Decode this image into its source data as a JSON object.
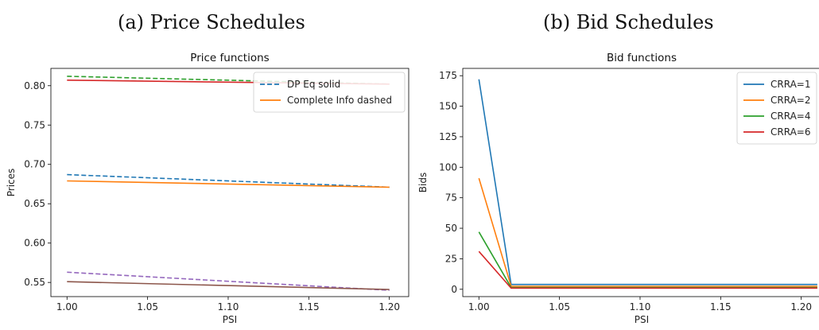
{
  "captions": {
    "a": "(a) Price Schedules",
    "b": "(b) Bid Schedules"
  },
  "chart_data": [
    {
      "type": "line",
      "title": "Price functions",
      "xlabel": "PSI",
      "ylabel": "Prices",
      "xlim": [
        0.99,
        1.212
      ],
      "ylim": [
        0.532,
        0.822
      ],
      "xticks": [
        1.0,
        1.05,
        1.1,
        1.15,
        1.2
      ],
      "xtick_labels": [
        "1.00",
        "1.05",
        "1.10",
        "1.15",
        "1.20"
      ],
      "yticks": [
        0.55,
        0.6,
        0.65,
        0.7,
        0.75,
        0.8
      ],
      "ytick_labels": [
        "0.55",
        "0.60",
        "0.65",
        "0.70",
        "0.75",
        "0.80"
      ],
      "legend": {
        "position": "upper-right",
        "entries": [
          {
            "label": "DP Eq solid",
            "color": "#1f77b4",
            "dash": true
          },
          {
            "label": "Complete Info dashed",
            "color": "#ff7f0e",
            "dash": false
          }
        ]
      },
      "series": [
        {
          "color": "#2ca02c",
          "dash": true,
          "x": [
            1.0,
            1.2
          ],
          "y": [
            0.812,
            0.802
          ]
        },
        {
          "color": "#d62728",
          "dash": false,
          "x": [
            1.0,
            1.2
          ],
          "y": [
            0.807,
            0.802
          ]
        },
        {
          "color": "#1f77b4",
          "dash": true,
          "x": [
            1.0,
            1.2
          ],
          "y": [
            0.687,
            0.671
          ]
        },
        {
          "color": "#ff7f0e",
          "dash": false,
          "x": [
            1.0,
            1.2
          ],
          "y": [
            0.679,
            0.671
          ]
        },
        {
          "color": "#9467bd",
          "dash": true,
          "x": [
            1.0,
            1.2
          ],
          "y": [
            0.563,
            0.54
          ]
        },
        {
          "color": "#8c564b",
          "dash": false,
          "x": [
            1.0,
            1.2
          ],
          "y": [
            0.551,
            0.541
          ]
        }
      ]
    },
    {
      "type": "line",
      "title": "Bid functions",
      "xlabel": "PSI",
      "ylabel": "Bids",
      "xlim": [
        0.99,
        1.212
      ],
      "ylim": [
        -6,
        181
      ],
      "xticks": [
        1.0,
        1.05,
        1.1,
        1.15,
        1.2
      ],
      "xtick_labels": [
        "1.00",
        "1.05",
        "1.10",
        "1.15",
        "1.20"
      ],
      "yticks": [
        0,
        25,
        50,
        75,
        100,
        125,
        150,
        175
      ],
      "ytick_labels": [
        "0",
        "25",
        "50",
        "75",
        "100",
        "125",
        "150",
        "175"
      ],
      "legend": {
        "position": "upper-right",
        "entries": [
          {
            "label": "CRRA=1",
            "color": "#1f77b4",
            "dash": false
          },
          {
            "label": "CRRA=2",
            "color": "#ff7f0e",
            "dash": false
          },
          {
            "label": "CRRA=4",
            "color": "#2ca02c",
            "dash": false
          },
          {
            "label": "CRRA=6",
            "color": "#d62728",
            "dash": false
          }
        ]
      },
      "series": [
        {
          "name": "CRRA=1",
          "color": "#1f77b4",
          "dash": false,
          "x": [
            1.0,
            1.02,
            1.21
          ],
          "y": [
            172,
            4,
            4
          ]
        },
        {
          "name": "CRRA=2",
          "color": "#ff7f0e",
          "dash": false,
          "x": [
            1.0,
            1.02,
            1.21
          ],
          "y": [
            91,
            2.5,
            2.5
          ]
        },
        {
          "name": "CRRA=4",
          "color": "#2ca02c",
          "dash": false,
          "x": [
            1.0,
            1.02,
            1.21
          ],
          "y": [
            47,
            1.5,
            1.5
          ]
        },
        {
          "name": "CRRA=6",
          "color": "#d62728",
          "dash": false,
          "x": [
            1.0,
            1.02,
            1.21
          ],
          "y": [
            31,
            1,
            1
          ]
        }
      ]
    }
  ]
}
